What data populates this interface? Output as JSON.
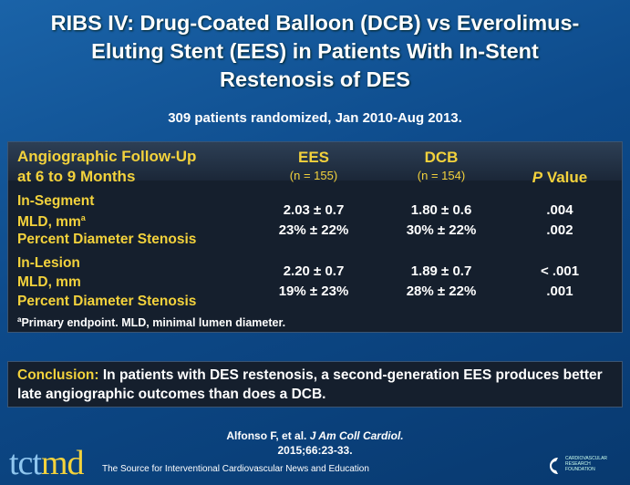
{
  "title": {
    "line1": "RIBS IV: Drug-Coated Balloon (DCB) vs Everolimus-",
    "line2": "Eluting Stent (EES) in Patients With In-Stent",
    "line3": "Restenosis of DES"
  },
  "subtitle": "309 patients randomized, Jan 2010-Aug 2013.",
  "table": {
    "header": {
      "label1": "Angiographic Follow-Up",
      "label2": "at 6 to 9 Months",
      "ees": "EES",
      "ees_n": "(n = 155)",
      "dcb": "DCB",
      "dcb_n": "(n = 154)",
      "p_italic": "P",
      "p_rest": " Value"
    },
    "groups": [
      {
        "name": "In-Segment",
        "row1": "MLD, mm",
        "row1_sup": "a",
        "row2": "Percent Diameter Stenosis",
        "ees": [
          "2.03 ± 0.7",
          "23% ± 22%"
        ],
        "dcb": [
          "1.80 ± 0.6",
          "30% ± 22%"
        ],
        "p": [
          ".004",
          ".002"
        ]
      },
      {
        "name": "In-Lesion",
        "row1": "MLD, mm",
        "row1_sup": "",
        "row2": "Percent Diameter Stenosis",
        "ees": [
          "2.20 ± 0.7",
          "19% ± 23%"
        ],
        "dcb": [
          "1.89 ± 0.7",
          "28% ± 22%"
        ],
        "p": [
          "< .001",
          ".001"
        ]
      }
    ],
    "footnote_sup": "a",
    "footnote": "Primary endpoint. MLD, minimal lumen diameter."
  },
  "conclusion": {
    "label": "Conclusion:",
    "text": " In patients with DES restenosis, a second-generation EES produces better late angiographic outcomes than does a DCB."
  },
  "citation": {
    "authors": "Alfonso F, et al. ",
    "journal": "J Am Coll Cardiol.",
    "details": "2015;66:23-33."
  },
  "footer": {
    "logo_tct": "tct",
    "logo_md": "md",
    "tagline": "The Source for Interventional Cardiovascular News and Education",
    "crf_logo": "CARDIOVASCULAR RESEARCH FOUNDATION"
  },
  "colors": {
    "accent": "#f3d23c",
    "background": "#0d4a8a",
    "panel": "#151f2d"
  }
}
